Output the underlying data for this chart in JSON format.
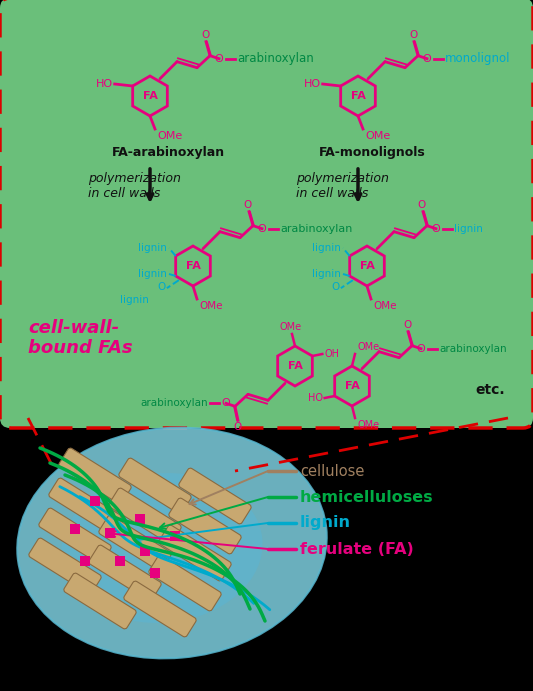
{
  "bg_color": "#000000",
  "green_box_color": "#6abf7a",
  "red_dashed": "#dd0000",
  "magenta": "#e6007e",
  "cyan_text": "#00aacc",
  "green_text": "#008844",
  "dark_text": "#111111",
  "cellulose_color": "#a08060",
  "hemicellulose_color": "#00aa44",
  "lignin_color": "#00aacc",
  "ferulate_color": "#e6007e",
  "legend_items": [
    {
      "label": "cellulose",
      "color": "#a08060"
    },
    {
      "label": "hemicelluloses",
      "color": "#00aa44"
    },
    {
      "label": "lignin",
      "color": "#00aacc"
    },
    {
      "label": "ferulate (FA)",
      "color": "#e6007e"
    }
  ],
  "arabinoxylan": "arabinoxylan",
  "monolignol": "monolignol",
  "lignin_text": "lignin",
  "ome": "OMe",
  "ho": "HO",
  "oh": "OH",
  "fa": "FA",
  "etc": "etc.",
  "cell_wall_label": "cell-wall-\nbound FAs",
  "poly_text": "polymerization\nin cell walls",
  "fa_arab_label": "FA-arabinoxylan",
  "fa_mono_label": "FA-monolignols"
}
